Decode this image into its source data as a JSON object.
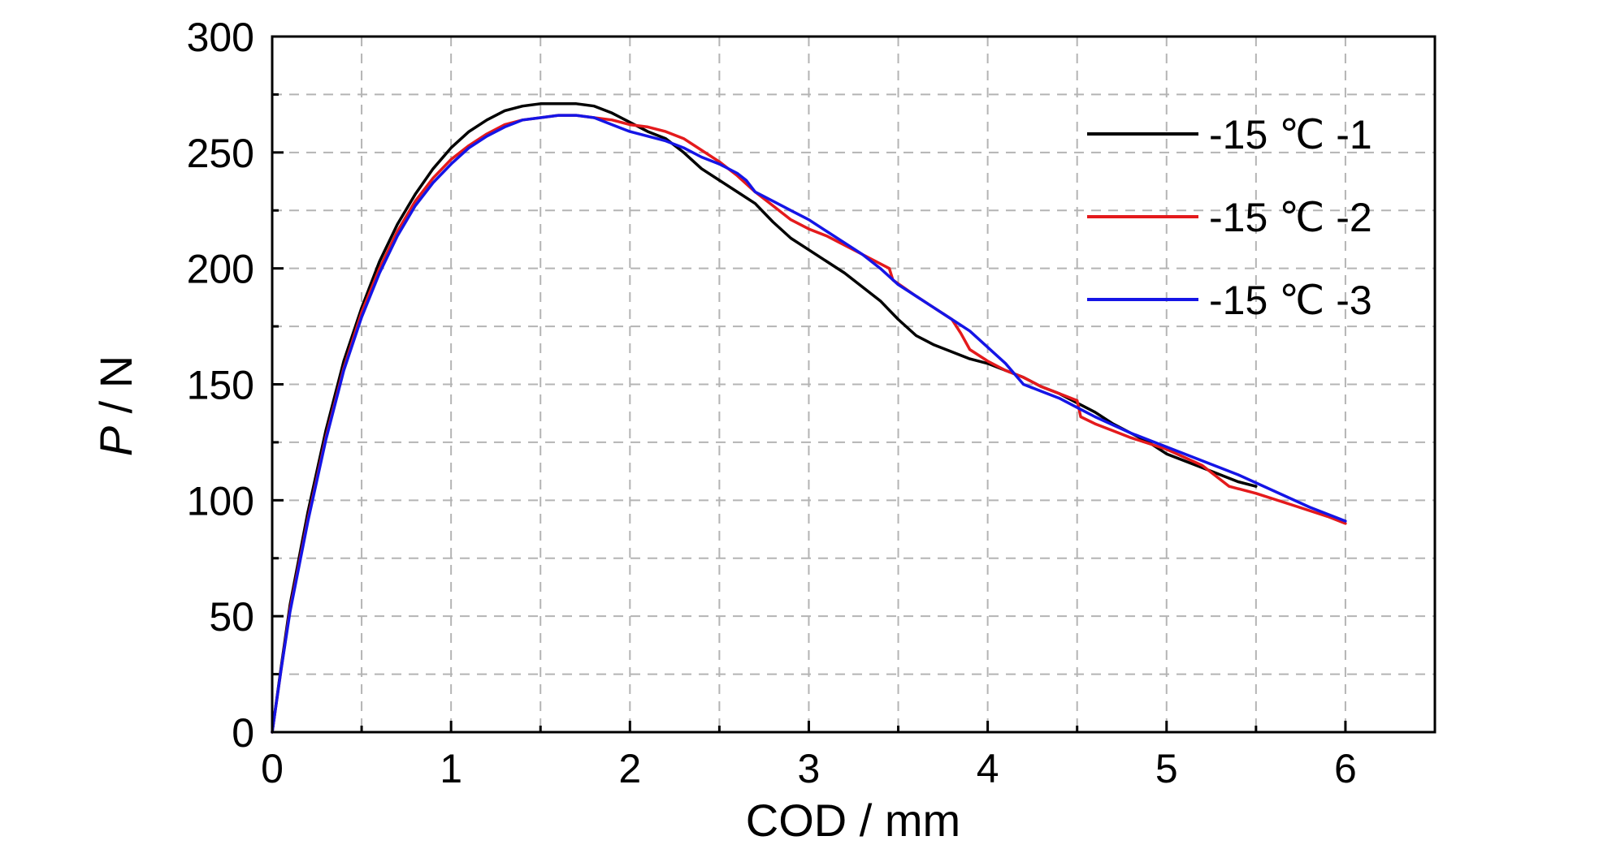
{
  "chart_data": {
    "type": "line",
    "title": "",
    "xlabel": "COD / mm",
    "ylabel_italic": "P",
    "ylabel_unit": " / N",
    "xlim": [
      0,
      6.5
    ],
    "ylim": [
      0,
      300
    ],
    "x_ticks": [
      0,
      1,
      2,
      3,
      4,
      5,
      6
    ],
    "x_tick_labels": [
      "0",
      "1",
      "2",
      "3",
      "4",
      "5",
      "6"
    ],
    "x_minor_ticks": [
      0.5,
      1.5,
      2.5,
      3.5,
      4.5,
      5.5
    ],
    "y_ticks": [
      0,
      50,
      100,
      150,
      200,
      250,
      300
    ],
    "y_tick_labels": [
      "0",
      "50",
      "100",
      "150",
      "200",
      "250",
      "300"
    ],
    "y_minor_ticks": [
      25,
      75,
      125,
      175,
      225,
      275
    ],
    "grid": true,
    "legend_position": "top-right",
    "series": [
      {
        "name": "-15 ℃ -1",
        "color": "#000000",
        "x": [
          0,
          0.05,
          0.1,
          0.2,
          0.3,
          0.4,
          0.5,
          0.6,
          0.7,
          0.8,
          0.9,
          1.0,
          1.1,
          1.2,
          1.3,
          1.4,
          1.5,
          1.6,
          1.7,
          1.8,
          1.9,
          2.0,
          2.1,
          2.2,
          2.3,
          2.4,
          2.5,
          2.6,
          2.7,
          2.8,
          2.9,
          3.0,
          3.2,
          3.4,
          3.5,
          3.6,
          3.7,
          3.8,
          3.9,
          4.0,
          4.1,
          4.2,
          4.3,
          4.4,
          4.5,
          4.6,
          4.7,
          4.8,
          4.9,
          5.0,
          5.2,
          5.4,
          5.5
        ],
        "y": [
          0,
          28,
          55,
          95,
          130,
          160,
          183,
          203,
          219,
          232,
          243,
          252,
          259,
          264,
          268,
          270,
          271,
          271,
          271,
          270,
          267,
          263,
          259,
          256,
          250,
          243,
          238,
          233,
          228,
          220,
          213,
          208,
          198,
          186,
          178,
          171,
          167,
          164,
          161,
          159,
          156,
          153,
          149,
          146,
          142,
          138,
          133,
          129,
          125,
          120,
          114,
          108,
          106
        ]
      },
      {
        "name": "-15 ℃ -2",
        "color": "#e41a1c",
        "x": [
          0,
          0.05,
          0.1,
          0.2,
          0.3,
          0.4,
          0.5,
          0.6,
          0.7,
          0.8,
          0.9,
          1.0,
          1.1,
          1.2,
          1.3,
          1.4,
          1.5,
          1.6,
          1.7,
          1.8,
          1.9,
          2.0,
          2.1,
          2.2,
          2.3,
          2.4,
          2.5,
          2.6,
          2.7,
          2.8,
          2.9,
          3.0,
          3.1,
          3.2,
          3.3,
          3.45,
          3.47,
          3.6,
          3.7,
          3.8,
          3.85,
          3.9,
          4.0,
          4.1,
          4.2,
          4.3,
          4.4,
          4.5,
          4.52,
          4.6,
          4.7,
          4.8,
          5.0,
          5.2,
          5.35,
          5.5,
          5.7,
          5.9,
          6.0
        ],
        "y": [
          0,
          27,
          53,
          92,
          127,
          157,
          181,
          200,
          216,
          229,
          239,
          247,
          253,
          258,
          262,
          264,
          265,
          266,
          266,
          265,
          264,
          262,
          261,
          259,
          256,
          251,
          246,
          240,
          233,
          227,
          221,
          217,
          214,
          210,
          206,
          200,
          195,
          188,
          183,
          178,
          172,
          165,
          160,
          156,
          153,
          149,
          146,
          143,
          136,
          133,
          130,
          127,
          122,
          115,
          106,
          103,
          98,
          93,
          90
        ]
      },
      {
        "name": "-15 ℃ -3",
        "color": "#1515e6",
        "x": [
          0,
          0.05,
          0.1,
          0.2,
          0.3,
          0.4,
          0.5,
          0.6,
          0.7,
          0.8,
          0.9,
          1.0,
          1.1,
          1.2,
          1.3,
          1.4,
          1.5,
          1.6,
          1.7,
          1.8,
          1.9,
          2.0,
          2.1,
          2.2,
          2.3,
          2.4,
          2.5,
          2.6,
          2.65,
          2.7,
          2.8,
          2.9,
          3.0,
          3.1,
          3.2,
          3.3,
          3.4,
          3.5,
          3.6,
          3.7,
          3.8,
          3.9,
          4.0,
          4.1,
          4.2,
          4.3,
          4.4,
          4.5,
          4.6,
          4.8,
          5.0,
          5.2,
          5.4,
          5.6,
          5.8,
          6.0
        ],
        "y": [
          0,
          27,
          52,
          91,
          126,
          156,
          179,
          198,
          214,
          227,
          237,
          245,
          252,
          257,
          261,
          264,
          265,
          266,
          266,
          265,
          262,
          259,
          257,
          255,
          252,
          248,
          245,
          241,
          238,
          233,
          229,
          225,
          221,
          216,
          211,
          206,
          200,
          193,
          188,
          183,
          178,
          173,
          166,
          159,
          150,
          147,
          144,
          140,
          136,
          129,
          123,
          117,
          111,
          104,
          97,
          91
        ]
      }
    ]
  }
}
